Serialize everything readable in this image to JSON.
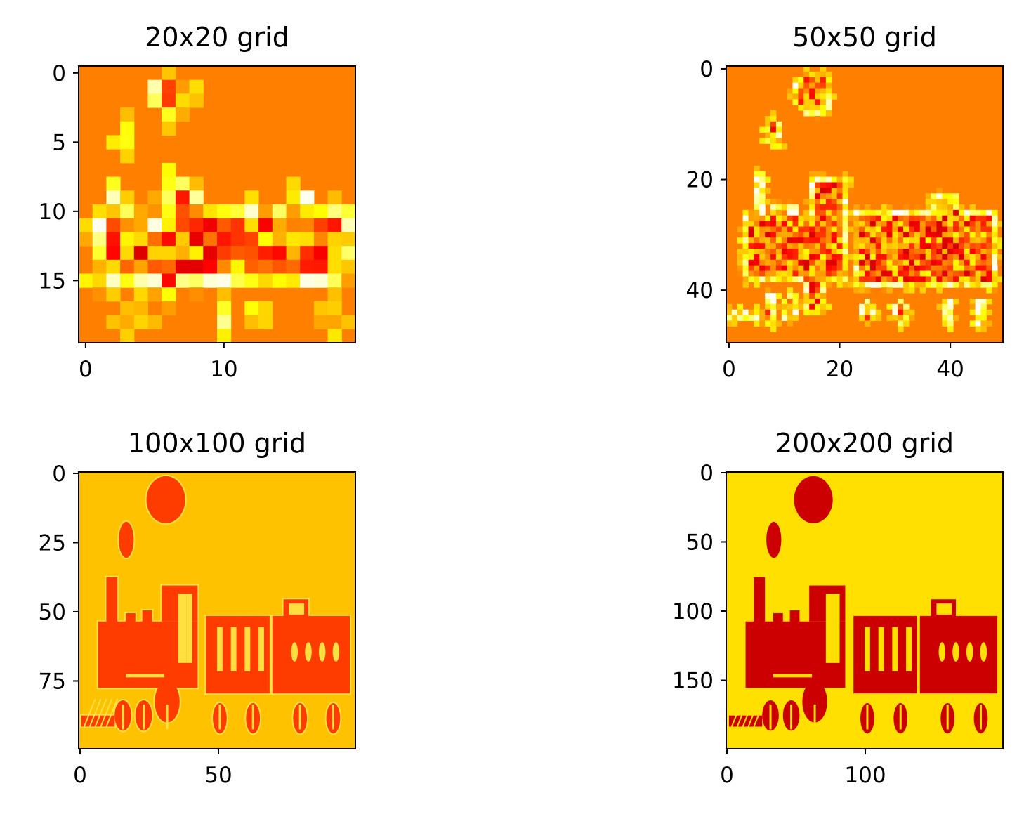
{
  "chart_data": [
    {
      "type": "heatmap",
      "title": "20x20 grid",
      "grid_size": 20,
      "xlim": [
        -0.5,
        19.5
      ],
      "ylim": [
        19.5,
        -0.5
      ],
      "xticks": [
        0,
        10
      ],
      "yticks": [
        0,
        5,
        10,
        15
      ],
      "colormap": "hot"
    },
    {
      "type": "heatmap",
      "title": "50x50 grid",
      "grid_size": 50,
      "xlim": [
        -0.5,
        49.5
      ],
      "ylim": [
        49.5,
        -0.5
      ],
      "xticks": [
        0,
        20,
        40
      ],
      "yticks": [
        0,
        20,
        40
      ],
      "colormap": "hot"
    },
    {
      "type": "heatmap",
      "title": "100x100 grid",
      "grid_size": 100,
      "xlim": [
        -0.5,
        99.5
      ],
      "ylim": [
        99.5,
        -0.5
      ],
      "xticks": [
        0,
        50
      ],
      "yticks": [
        0,
        25,
        50,
        75
      ],
      "colormap": "hot"
    },
    {
      "type": "heatmap",
      "title": "200x200 grid",
      "grid_size": 200,
      "xlim": [
        -0.5,
        199.5
      ],
      "ylim": [
        199.5,
        -0.5
      ],
      "xticks": [
        0,
        100
      ],
      "yticks": [
        0,
        50,
        100,
        150
      ],
      "colormap": "hot"
    }
  ],
  "colors": {
    "panel1_background": "#ff7f00",
    "panel2_background": "#ff7f00",
    "panel3_background": "#ffc200",
    "panel3_shape": "#ff3c00",
    "panel4_background": "#ffe000",
    "panel4_shape": "#cc0000",
    "outline": "#ffff20",
    "dark": "#5a0000"
  }
}
